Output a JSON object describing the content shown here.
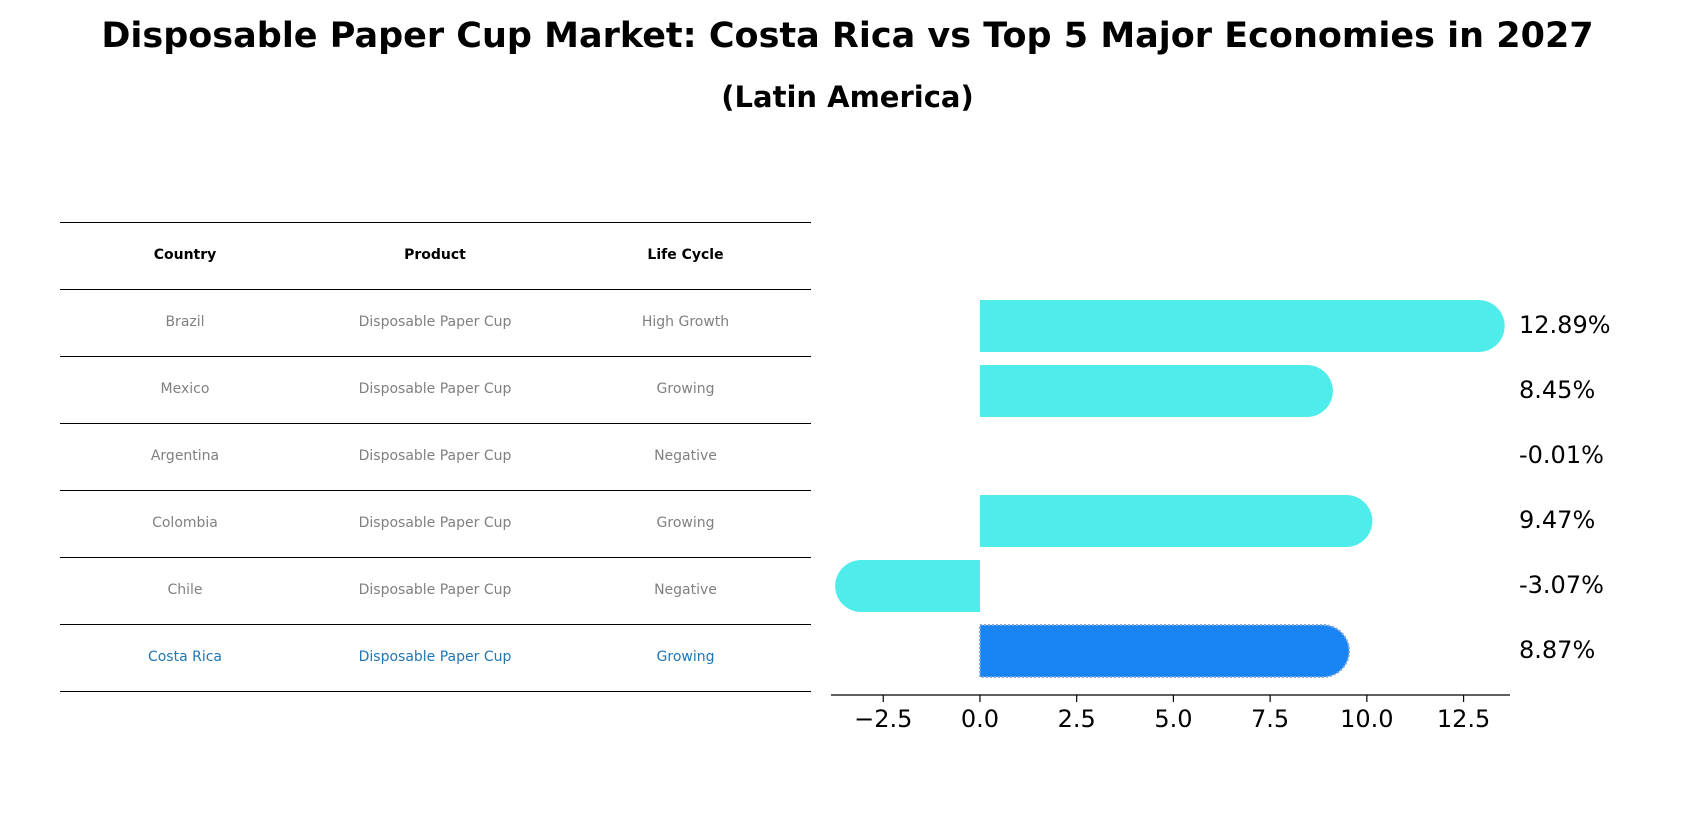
{
  "title": "Disposable Paper Cup Market: Costa Rica vs Top 5 Major Economies in 2027",
  "subtitle": "(Latin America)",
  "table": {
    "headers": [
      "Country",
      "Product",
      "Life Cycle"
    ],
    "rows": [
      [
        "Brazil",
        "Disposable Paper Cup",
        "High Growth"
      ],
      [
        "Mexico",
        "Disposable Paper Cup",
        "Growing"
      ],
      [
        "Argentina",
        "Disposable Paper Cup",
        "Negative"
      ],
      [
        "Colombia",
        "Disposable Paper Cup",
        "Growing"
      ],
      [
        "Chile",
        "Disposable Paper Cup",
        "Negative"
      ],
      [
        "Costa Rica",
        "Disposable Paper Cup",
        "Growing"
      ]
    ],
    "highlight_row": 5,
    "highlight_color": "#1f77b4"
  },
  "chart_data": {
    "type": "bar",
    "orientation": "horizontal",
    "categories": [
      "Brazil",
      "Mexico",
      "Argentina",
      "Colombia",
      "Chile",
      "Costa Rica"
    ],
    "values": [
      12.89,
      8.45,
      -0.01,
      9.47,
      -3.07,
      8.87
    ],
    "value_labels": [
      "12.89%",
      "8.45%",
      "-0.01%",
      "9.47%",
      "-3.07%",
      "8.87%"
    ],
    "bar_colors": [
      "#4eecea",
      "#4eecea",
      "#4eecea",
      "#4eecea",
      "#4eecea",
      "#1984f3"
    ],
    "xticks": [
      -2.5,
      0.0,
      2.5,
      5.0,
      7.5,
      10.0,
      12.5
    ],
    "xtick_labels": [
      "−2.5",
      "0.0",
      "2.5",
      "5.0",
      "7.5",
      "10.0",
      "12.5"
    ],
    "xlim": [
      -3.85,
      13.7
    ],
    "grid": false
  }
}
